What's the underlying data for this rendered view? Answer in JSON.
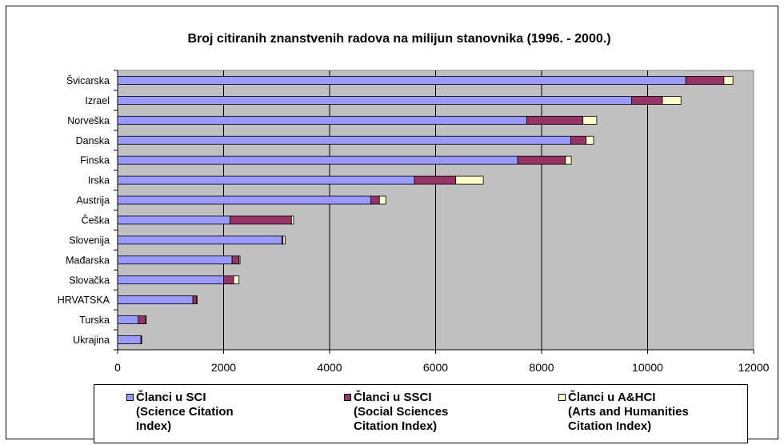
{
  "chart_data": {
    "type": "bar",
    "orientation": "horizontal",
    "stacked": true,
    "title": "Broj citiranih znanstvenih radova na milijun stanovnika (1996. - 2000.)",
    "categories": [
      "Švicarska",
      "Izrael",
      "Norveška",
      "Danska",
      "Finska",
      "Irska",
      "Austrija",
      "Češka",
      "Slovenija",
      "Mađarska",
      "Slovačka",
      "HRVATSKA",
      "Turska",
      "Ukrajina"
    ],
    "series": [
      {
        "name": "Članci u SCI (Science Citation Index)",
        "color": "#9999ff",
        "values": [
          10720,
          9700,
          7720,
          8550,
          7550,
          5600,
          4780,
          2120,
          3100,
          2160,
          2000,
          1420,
          390,
          440
        ]
      },
      {
        "name": "Članci u SSCI (Social Sciences Citation Index)",
        "color": "#993366",
        "values": [
          720,
          580,
          1060,
          290,
          900,
          780,
          160,
          1160,
          20,
          130,
          190,
          70,
          140,
          10
        ]
      },
      {
        "name": "Članci u A&HCI (Arts and Humanities Citation Index)",
        "color": "#ffffcc",
        "values": [
          170,
          350,
          260,
          140,
          110,
          520,
          120,
          40,
          40,
          20,
          100,
          10,
          10,
          5
        ]
      }
    ],
    "xlim": [
      0,
      12000
    ],
    "xticks": [
      "0",
      "2000",
      "4000",
      "6000",
      "8000",
      "10000",
      "12000"
    ],
    "grid": true,
    "plot_background": "#c0c0c0",
    "legend_position": "bottom",
    "legend": [
      {
        "label": "Članci u SCI\n(Science Citation\nIndex)",
        "color": "#9999ff"
      },
      {
        "label": "Članci u SSCI\n(Social Sciences\nCitation Index)",
        "color": "#993366"
      },
      {
        "label": "Članci u A&HCI\n(Arts and Humanities\nCitation Index)",
        "color": "#ffffcc"
      }
    ]
  }
}
